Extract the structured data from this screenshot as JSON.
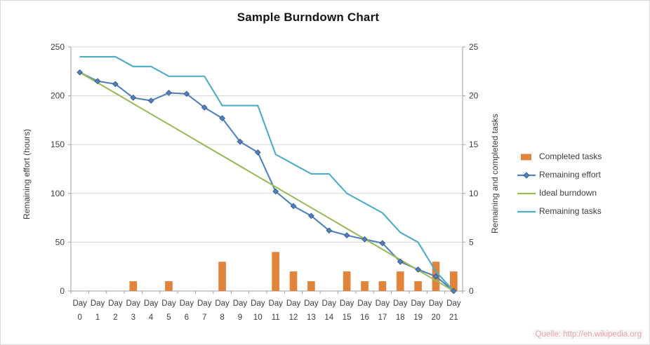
{
  "chart_data": {
    "type": "line",
    "title": "Sample Burndown Chart",
    "categories": [
      "Day 0",
      "Day 1",
      "Day 2",
      "Day 3",
      "Day 4",
      "Day 5",
      "Day 6",
      "Day 7",
      "Day 8",
      "Day 9",
      "Day 10",
      "Day 11",
      "Day 12",
      "Day 13",
      "Day 14",
      "Day 15",
      "Day 16",
      "Day 17",
      "Day 18",
      "Day 19",
      "Day 20",
      "Day 21"
    ],
    "left_axis": {
      "label": "Remaining effort (hours)",
      "min": 0,
      "max": 250,
      "ticks": [
        0,
        50,
        100,
        150,
        200,
        250
      ]
    },
    "right_axis": {
      "label": "Remaining and  completed tasks",
      "min": 0,
      "max": 25,
      "ticks": [
        0,
        5,
        10,
        15,
        20,
        25
      ]
    },
    "grid": true,
    "legend_position": "right",
    "series": [
      {
        "name": "Completed tasks",
        "type": "bar",
        "axis": "right",
        "color": "#E2833C",
        "values": [
          0,
          0,
          0,
          1,
          0,
          1,
          0,
          0,
          3,
          0,
          0,
          4,
          2,
          1,
          0,
          2,
          1,
          1,
          2,
          1,
          3,
          2
        ]
      },
      {
        "name": "Remaining effort",
        "type": "line",
        "axis": "left",
        "color": "#4F81BD",
        "marker": "diamond",
        "values": [
          224,
          215,
          212,
          198,
          195,
          203,
          202,
          188,
          177,
          153,
          142,
          102,
          87,
          77,
          62,
          57,
          53,
          49,
          30,
          22,
          15,
          0
        ]
      },
      {
        "name": "Ideal burndown",
        "type": "line",
        "axis": "left",
        "color": "#9BBB59",
        "values": [
          224,
          213.3,
          202.7,
          192,
          181.3,
          170.7,
          160,
          149.3,
          138.7,
          128,
          117.3,
          106.7,
          96,
          85.3,
          74.7,
          64,
          53.3,
          42.7,
          32,
          21.3,
          10.7,
          0
        ]
      },
      {
        "name": "Remaining tasks",
        "type": "line",
        "axis": "right",
        "color": "#4BACC6",
        "values": [
          24,
          24,
          24,
          23,
          23,
          22,
          22,
          22,
          19,
          19,
          19,
          14,
          13,
          12,
          12,
          10,
          9,
          8,
          6,
          5,
          2,
          0
        ]
      }
    ]
  },
  "watermark": {
    "text": "Quelle: http://en.wikipedia.org"
  }
}
